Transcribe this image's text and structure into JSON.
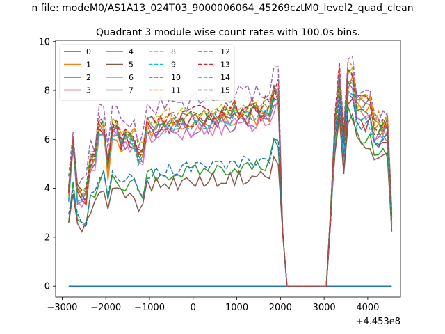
{
  "suptitle": "n file: modeM0/AS1A13_024T03_9000006064_45269cztM0_level2_quad_clean",
  "chart_data": {
    "type": "line",
    "title": "Quadrant 3 module wise count rates with 100.0s bins.",
    "xlabel": "",
    "ylabel": "",
    "x_offset_label": "+4.453e8",
    "xlim": [
      -3150,
      4750
    ],
    "ylim": [
      -0.45,
      10.05
    ],
    "x_ticks": [
      -3000,
      -2000,
      -1000,
      0,
      1000,
      2000,
      3000,
      4000
    ],
    "x_tick_labels": [
      "−3000",
      "−2000",
      "−1000",
      "0",
      "1000",
      "2000",
      "3000",
      "4000"
    ],
    "y_ticks": [
      0,
      2,
      4,
      6,
      8,
      10
    ],
    "y_tick_labels": [
      "0",
      "2",
      "4",
      "6",
      "8",
      "10"
    ],
    "grid": false,
    "legend_placement": "top-left",
    "legend_columns": 4,
    "segments": [
      {
        "x_start": -2850,
        "x_end": 1950
      },
      {
        "x_start": 3150,
        "x_end": 4550
      }
    ],
    "gap": {
      "x": [
        2050,
        2150,
        2250,
        2350,
        2450,
        2550,
        2650,
        2750,
        2850,
        2950,
        3050
      ],
      "y": [
        2.2,
        0,
        0,
        0,
        0,
        0,
        0,
        0,
        0,
        0,
        0
      ]
    },
    "series": [
      {
        "name": "0",
        "color": "#1f77b4",
        "dash": "solid",
        "values": [
          0,
          0
        ]
      },
      {
        "name": "1",
        "color": "#ff7f0e",
        "dash": "solid",
        "base": 6.6,
        "seed": 2,
        "amp": 0.35,
        "late_base": 7.6
      },
      {
        "name": "2",
        "color": "#2ca02c",
        "dash": "solid",
        "base": 4.7,
        "seed": 3,
        "amp": 0.3,
        "late_base": 6.4
      },
      {
        "name": "3",
        "color": "#d62728",
        "dash": "solid",
        "base": 6.7,
        "seed": 4,
        "amp": 0.4,
        "late_base": 7.0
      },
      {
        "name": "4",
        "color": "#9467bd",
        "dash": "solid",
        "base": 6.5,
        "seed": 5,
        "amp": 0.35,
        "late_base": 7.4
      },
      {
        "name": "5",
        "color": "#8c564b",
        "dash": "solid",
        "base": 4.3,
        "seed": 6,
        "amp": 0.3,
        "late_base": 6.2
      },
      {
        "name": "6",
        "color": "#e377c2",
        "dash": "solid",
        "base": 6.4,
        "seed": 7,
        "amp": 0.35,
        "late_base": 7.3
      },
      {
        "name": "7",
        "color": "#7f7f7f",
        "dash": "solid",
        "base": 6.9,
        "seed": 8,
        "amp": 0.3,
        "late_base": 7.8
      },
      {
        "name": "8",
        "color": "#bcbd22",
        "dash": "dashed",
        "base": 7.2,
        "seed": 9,
        "amp": 0.35,
        "late_base": 7.9
      },
      {
        "name": "9",
        "color": "#17becf",
        "dash": "dashed",
        "base": 6.7,
        "seed": 10,
        "amp": 0.3,
        "late_base": 7.0
      },
      {
        "name": "10",
        "color": "#1f77b4",
        "dash": "dashed",
        "base": 4.9,
        "seed": 11,
        "amp": 0.3,
        "late_base": 7.0
      },
      {
        "name": "11",
        "color": "#ff7f0e",
        "dash": "dashed",
        "base": 7.0,
        "seed": 12,
        "amp": 0.35,
        "late_base": 8.1
      },
      {
        "name": "12",
        "color": "#2ca02c",
        "dash": "dashed",
        "base": 6.9,
        "seed": 13,
        "amp": 0.35,
        "late_base": 7.6
      },
      {
        "name": "13",
        "color": "#d62728",
        "dash": "dashed",
        "base": 7.1,
        "seed": 14,
        "amp": 0.35,
        "late_base": 8.0
      },
      {
        "name": "14",
        "color": "#9467bd",
        "dash": "dashed",
        "base": 7.6,
        "seed": 15,
        "amp": 0.4,
        "late_base": 8.3
      },
      {
        "name": "15",
        "color": "#8c564b",
        "dash": "dashed",
        "base": 6.8,
        "seed": 16,
        "amp": 0.35,
        "late_base": 7.8
      }
    ]
  }
}
